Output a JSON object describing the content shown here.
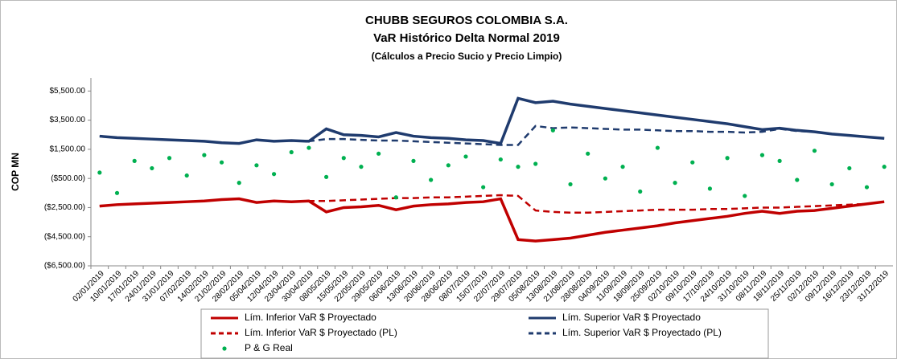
{
  "chart_data": {
    "type": "line",
    "title": "CHUBB SEGUROS COLOMBIA S.A.",
    "subtitle": "VaR Histórico Delta Normal 2019",
    "note": "(Cálculos a Precio Sucio y Precio Limpio)",
    "y_label": "COP MN",
    "categories": [
      "02/01/2019",
      "10/01/2019",
      "17/01/2019",
      "24/01/2019",
      "31/01/2019",
      "07/02/2019",
      "14/02/2019",
      "21/02/2019",
      "28/02/2019",
      "05/04/2019",
      "12/04/2019",
      "23/04/2019",
      "30/04/2019",
      "08/05/2019",
      "15/05/2019",
      "22/05/2019",
      "29/05/2019",
      "06/06/2019",
      "13/06/2019",
      "20/06/2019",
      "28/06/2019",
      "08/07/2019",
      "15/07/2019",
      "22/07/2019",
      "29/07/2019",
      "05/08/2019",
      "13/08/2019",
      "21/08/2019",
      "28/08/2019",
      "04/09/2019",
      "11/09/2019",
      "18/09/2019",
      "25/09/2019",
      "02/10/2019",
      "09/10/2019",
      "17/10/2019",
      "24/10/2019",
      "31/10/2019",
      "08/11/2019",
      "18/11/2019",
      "25/11/2019",
      "02/12/2019",
      "09/12/2019",
      "16/12/2019",
      "23/12/2019",
      "31/12/2019"
    ],
    "series": [
      {
        "name": "Lím. Inferior VaR $ Proyectado",
        "color": "#c00000",
        "style": "solid",
        "values": [
          -2400,
          -2300,
          -2250,
          -2200,
          -2150,
          -2100,
          -2050,
          -1950,
          -1900,
          -2150,
          -2050,
          -2100,
          -2050,
          -2800,
          -2500,
          -2450,
          -2350,
          -2650,
          -2400,
          -2300,
          -2250,
          -2150,
          -2100,
          -1900,
          -4700,
          -4800,
          -4700,
          -4600,
          -4400,
          -4200,
          -4050,
          -3900,
          -3750,
          -3550,
          -3400,
          -3250,
          -3100,
          -2900,
          -2750,
          -2900,
          -2750,
          -2700,
          -2550,
          -2400,
          -2250,
          -2100
        ]
      },
      {
        "name": "Lím. Superior VaR $ Proyectado",
        "color": "#1f3b6e",
        "style": "solid",
        "values": [
          2400,
          2300,
          2250,
          2200,
          2150,
          2100,
          2050,
          1950,
          1900,
          2150,
          2050,
          2100,
          2050,
          2900,
          2500,
          2450,
          2350,
          2650,
          2400,
          2300,
          2250,
          2150,
          2100,
          1900,
          5000,
          4700,
          4800,
          4600,
          4450,
          4300,
          4150,
          4000,
          3850,
          3700,
          3550,
          3400,
          3250,
          3050,
          2850,
          2950,
          2800,
          2700,
          2550,
          2450,
          2350,
          2250
        ]
      },
      {
        "name": "Lím. Inferior VaR $ Proyectado (PL)",
        "color": "#c00000",
        "style": "dashed",
        "values": [
          -2400,
          -2300,
          -2250,
          -2200,
          -2150,
          -2100,
          -2050,
          -1950,
          -1900,
          -2150,
          -2050,
          -2100,
          -2050,
          -2050,
          -2000,
          -1950,
          -1900,
          -1850,
          -1850,
          -1800,
          -1800,
          -1750,
          -1700,
          -1650,
          -1700,
          -2700,
          -2800,
          -2850,
          -2850,
          -2800,
          -2750,
          -2700,
          -2650,
          -2650,
          -2650,
          -2600,
          -2600,
          -2550,
          -2500,
          -2500,
          -2450,
          -2400,
          -2350,
          -2300,
          -2250,
          -2100
        ]
      },
      {
        "name": "Lím. Superior VaR $ Proyectado (PL)",
        "color": "#1f3b6e",
        "style": "dashed",
        "values": [
          2400,
          2300,
          2250,
          2200,
          2150,
          2100,
          2050,
          1950,
          1900,
          2150,
          2050,
          2100,
          2050,
          2200,
          2200,
          2150,
          2100,
          2100,
          2050,
          2000,
          1950,
          1900,
          1850,
          1800,
          1800,
          3100,
          2950,
          3000,
          2950,
          2900,
          2850,
          2850,
          2800,
          2750,
          2750,
          2700,
          2700,
          2650,
          2700,
          2900,
          2750,
          2700,
          2550,
          2450,
          2350,
          2250
        ]
      },
      {
        "name": "P & G Real",
        "color": "#00b050",
        "style": "dots",
        "values": [
          -100,
          -1500,
          700,
          200,
          900,
          -300,
          1100,
          600,
          -800,
          400,
          -200,
          1300,
          1600,
          -400,
          900,
          300,
          1200,
          -1800,
          700,
          -600,
          400,
          1000,
          -1100,
          800,
          300,
          500,
          2800,
          -900,
          1200,
          -500,
          300,
          -1400,
          1600,
          -800,
          600,
          -1200,
          900,
          -1700,
          1100,
          700,
          -600,
          1400,
          -900,
          200,
          -1100,
          300
        ]
      }
    ],
    "ylim": [
      -6500,
      6400
    ],
    "yticks": [
      {
        "value": 5500,
        "label": "$5,500.00"
      },
      {
        "value": 3500,
        "label": "$3,500.00"
      },
      {
        "value": 1500,
        "label": "$1,500.00"
      },
      {
        "value": -500,
        "label": "($500.00)"
      },
      {
        "value": -2500,
        "label": "($2,500.00)"
      },
      {
        "value": -4500,
        "label": "($4,500.00)"
      },
      {
        "value": -6500,
        "label": "($6,500.00)"
      }
    ],
    "grid": false,
    "legend": "bottom"
  }
}
